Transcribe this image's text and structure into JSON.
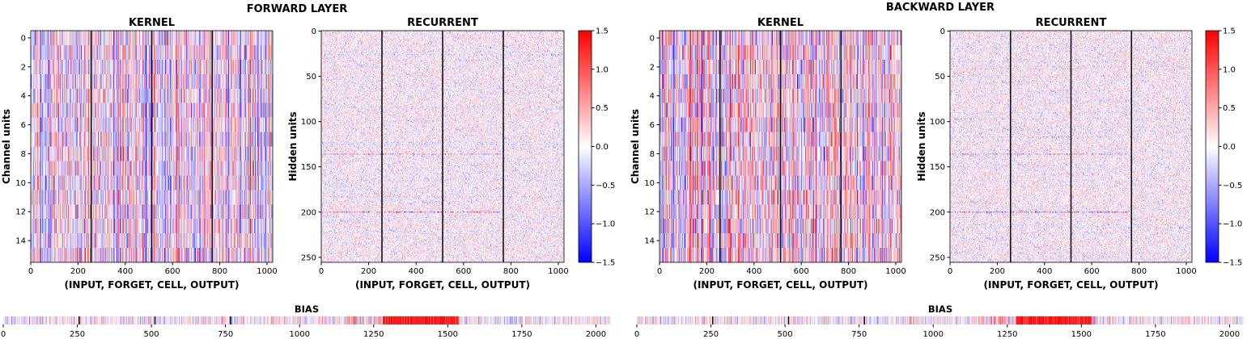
{
  "chart_data": [
    {
      "panel": "FORWARD LAYER",
      "title": "FORWARD LAYER",
      "colorbar": {
        "colormap": "bwr",
        "range": [
          -1.5,
          1.5
        ],
        "ticks": [
          "1.5",
          "1.0",
          "0.5",
          "0.0",
          "−0.5",
          "−1.0",
          "−1.5"
        ],
        "tick_values": [
          1.5,
          1.0,
          0.5,
          0.0,
          -0.5,
          -1.0,
          -1.5
        ]
      },
      "kernel": {
        "type": "heatmap",
        "title": "KERNEL",
        "xlabel": "(INPUT, FORGET, CELL, OUTPUT)",
        "ylabel": "Channel units",
        "xlim": [
          0,
          1024
        ],
        "ylim": [
          15.5,
          -0.5
        ],
        "rows": 16,
        "cols": 1024,
        "xticks": [
          0,
          200,
          400,
          600,
          800,
          1000
        ],
        "yticks": [
          0,
          2,
          4,
          6,
          8,
          10,
          12,
          14
        ],
        "gate_dividers": [
          256,
          512,
          768
        ],
        "value_spread": 0.6
      },
      "recurrent": {
        "type": "heatmap",
        "title": "RECURRENT",
        "xlabel": "(INPUT, FORGET, CELL, OUTPUT)",
        "ylabel": "Hidden units",
        "xlim": [
          0,
          1024
        ],
        "ylim": [
          255.5,
          -0.5
        ],
        "rows": 256,
        "cols": 1024,
        "xticks": [
          0,
          200,
          400,
          600,
          800,
          1000
        ],
        "yticks": [
          0,
          50,
          100,
          150,
          200,
          250
        ],
        "gate_dividers": [
          256,
          512,
          768
        ],
        "value_spread": 0.25
      },
      "bias": {
        "type": "heatmap",
        "title": "BIAS",
        "xlim": [
          0,
          2048
        ],
        "cols": 2048,
        "xticks": [
          0,
          250,
          500,
          750,
          1000,
          1250,
          1500,
          1750,
          2000
        ],
        "dividers": [
          256,
          512,
          768
        ],
        "strong_positive_range": [
          1280,
          1536
        ]
      }
    },
    {
      "panel": "BACKWARD LAYER",
      "title": "BACKWARD LAYER",
      "colorbar": {
        "colormap": "bwr",
        "range": [
          -1.5,
          1.5
        ],
        "ticks": [
          "1.5",
          "1.0",
          "0.5",
          "0.0",
          "−0.5",
          "−1.0",
          "−1.5"
        ],
        "tick_values": [
          1.5,
          1.0,
          0.5,
          0.0,
          -0.5,
          -1.0,
          -1.5
        ]
      },
      "kernel": {
        "type": "heatmap",
        "title": "KERNEL",
        "xlabel": "(INPUT, FORGET, CELL, OUTPUT)",
        "ylabel": "Channel units",
        "xlim": [
          0,
          1024
        ],
        "ylim": [
          15.5,
          -0.5
        ],
        "rows": 16,
        "cols": 1024,
        "xticks": [
          0,
          200,
          400,
          600,
          800,
          1000
        ],
        "yticks": [
          0,
          2,
          4,
          6,
          8,
          10,
          12,
          14
        ],
        "gate_dividers": [
          256,
          512,
          768
        ],
        "value_spread": 0.7
      },
      "recurrent": {
        "type": "heatmap",
        "title": "RECURRENT",
        "xlabel": "(INPUT, FORGET, CELL, OUTPUT)",
        "ylabel": "Hidden units",
        "xlim": [
          0,
          1024
        ],
        "ylim": [
          255.5,
          -0.5
        ],
        "rows": 256,
        "cols": 1024,
        "xticks": [
          0,
          200,
          400,
          600,
          800,
          1000
        ],
        "yticks": [
          0,
          50,
          100,
          150,
          200,
          250
        ],
        "gate_dividers": [
          256,
          512,
          768
        ],
        "value_spread": 0.25
      },
      "bias": {
        "type": "heatmap",
        "title": "BIAS",
        "xlim": [
          0,
          2048
        ],
        "cols": 2048,
        "xticks": [
          0,
          250,
          500,
          750,
          1000,
          1250,
          1500,
          1750,
          2000
        ],
        "dividers": [
          256,
          512,
          768
        ],
        "strong_positive_range": [
          1280,
          1536
        ]
      }
    }
  ]
}
